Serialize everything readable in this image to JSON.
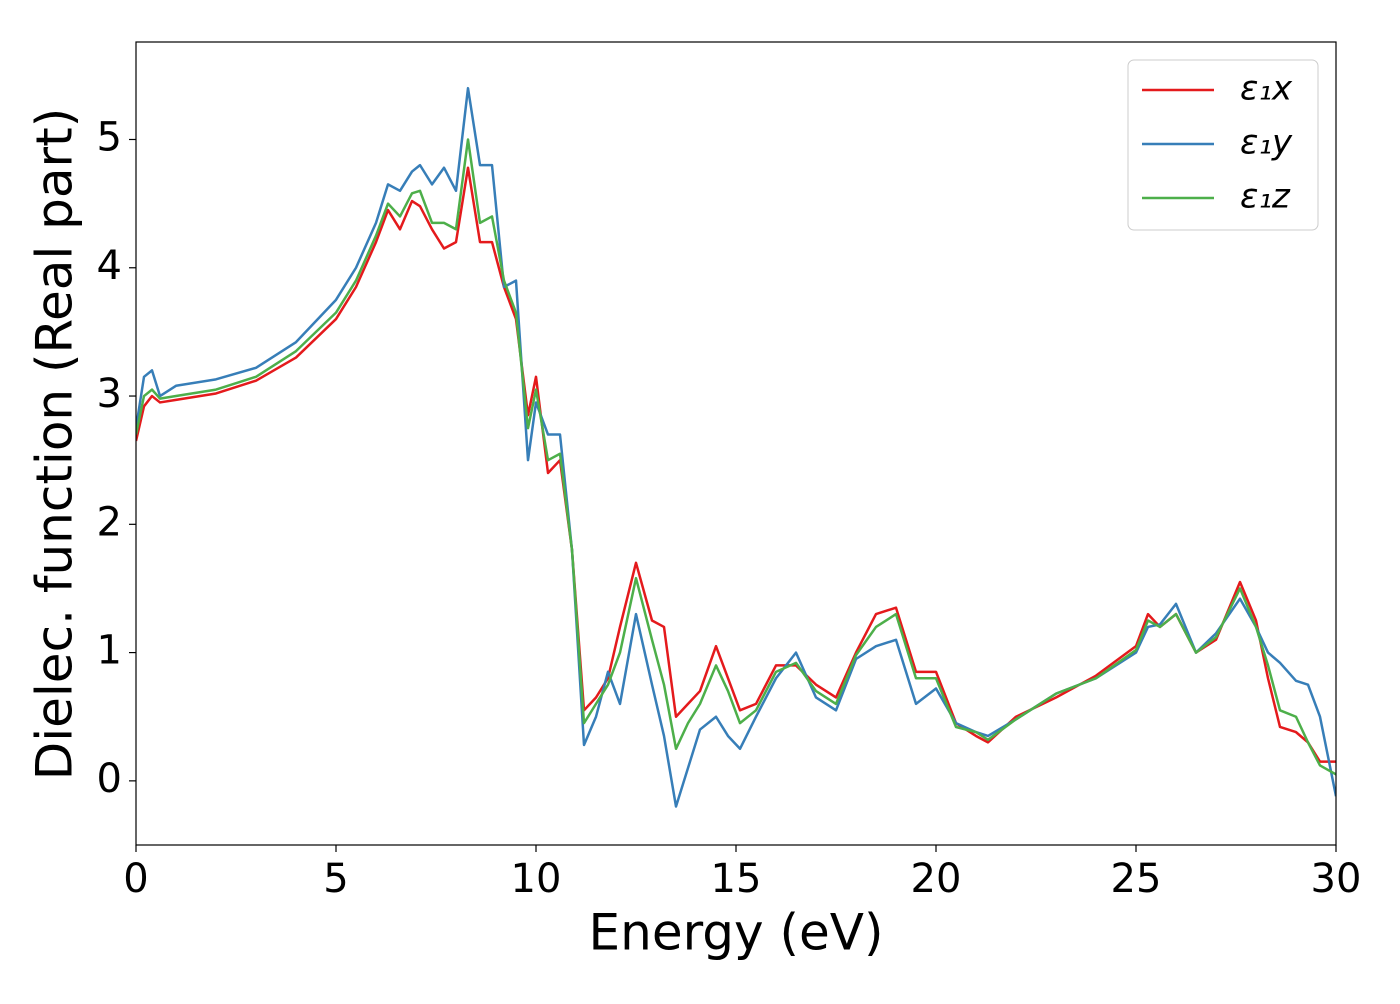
{
  "chart_data": {
    "type": "line",
    "xlabel": "Energy (eV)",
    "ylabel": "Dielec. function (Real part)",
    "x": [
      0,
      0.2,
      0.4,
      0.6,
      1,
      2,
      3,
      4,
      5,
      5.5,
      6,
      6.3,
      6.6,
      6.9,
      7.1,
      7.4,
      7.7,
      8.0,
      8.3,
      8.6,
      8.9,
      9.2,
      9.5,
      9.8,
      10.0,
      10.3,
      10.6,
      10.9,
      11.2,
      11.5,
      11.8,
      12.1,
      12.5,
      12.9,
      13.2,
      13.5,
      13.8,
      14.1,
      14.5,
      14.8,
      15.1,
      15.5,
      16.0,
      16.5,
      17.0,
      17.5,
      18.0,
      18.5,
      19.0,
      19.5,
      20.0,
      20.5,
      21.0,
      21.3,
      22.0,
      23.0,
      24.0,
      25.0,
      25.3,
      25.6,
      26.0,
      26.5,
      27.0,
      27.6,
      28.0,
      28.3,
      28.6,
      29.0,
      29.3,
      29.6,
      30.0
    ],
    "series": [
      {
        "name": "ε₁x",
        "color": "#e41a1c",
        "values": [
          2.65,
          2.92,
          3.0,
          2.95,
          2.97,
          3.02,
          3.12,
          3.3,
          3.6,
          3.85,
          4.2,
          4.45,
          4.3,
          4.52,
          4.48,
          4.3,
          4.15,
          4.2,
          4.78,
          4.2,
          4.2,
          3.85,
          3.6,
          2.85,
          3.15,
          2.4,
          2.5,
          1.8,
          0.55,
          0.65,
          0.8,
          1.2,
          1.7,
          1.25,
          1.2,
          0.5,
          0.6,
          0.7,
          1.05,
          0.8,
          0.55,
          0.6,
          0.9,
          0.9,
          0.75,
          0.65,
          1.0,
          1.3,
          1.35,
          0.85,
          0.85,
          0.45,
          0.35,
          0.3,
          0.5,
          0.65,
          0.82,
          1.05,
          1.3,
          1.2,
          1.3,
          1.0,
          1.1,
          1.55,
          1.25,
          0.8,
          0.42,
          0.38,
          0.3,
          0.15,
          0.15
        ]
      },
      {
        "name": "ε₁y",
        "color": "#377eb8",
        "values": [
          2.75,
          3.15,
          3.2,
          3.0,
          3.08,
          3.13,
          3.22,
          3.42,
          3.75,
          4.0,
          4.35,
          4.65,
          4.6,
          4.75,
          4.8,
          4.65,
          4.78,
          4.6,
          5.4,
          4.8,
          4.8,
          3.85,
          3.9,
          2.5,
          2.95,
          2.7,
          2.7,
          1.8,
          0.28,
          0.5,
          0.85,
          0.6,
          1.3,
          0.75,
          0.35,
          -0.2,
          0.1,
          0.4,
          0.5,
          0.35,
          0.25,
          0.5,
          0.8,
          1.0,
          0.65,
          0.55,
          0.95,
          1.05,
          1.1,
          0.6,
          0.72,
          0.45,
          0.38,
          0.35,
          0.48,
          0.68,
          0.8,
          1.0,
          1.2,
          1.22,
          1.38,
          1.0,
          1.15,
          1.42,
          1.2,
          1.0,
          0.92,
          0.78,
          0.75,
          0.5,
          -0.12
        ]
      },
      {
        "name": "ε₁z",
        "color": "#4daf4a",
        "values": [
          2.7,
          3.0,
          3.05,
          2.98,
          3.0,
          3.05,
          3.15,
          3.35,
          3.65,
          3.9,
          4.25,
          4.5,
          4.4,
          4.58,
          4.6,
          4.35,
          4.35,
          4.3,
          5.0,
          4.35,
          4.4,
          3.9,
          3.65,
          2.75,
          3.05,
          2.5,
          2.55,
          1.8,
          0.45,
          0.6,
          0.75,
          1.0,
          1.58,
          1.1,
          0.75,
          0.25,
          0.45,
          0.6,
          0.9,
          0.7,
          0.45,
          0.55,
          0.85,
          0.92,
          0.7,
          0.6,
          0.98,
          1.2,
          1.3,
          0.8,
          0.8,
          0.42,
          0.38,
          0.32,
          0.48,
          0.68,
          0.8,
          1.02,
          1.25,
          1.2,
          1.3,
          1.0,
          1.12,
          1.5,
          1.2,
          0.9,
          0.55,
          0.5,
          0.3,
          0.12,
          0.05
        ]
      }
    ],
    "xlim": [
      0,
      30
    ],
    "xticks": [
      0,
      5,
      10,
      15,
      20,
      25,
      30
    ],
    "ylim": [
      -0.5,
      5.76
    ],
    "yticks": [
      0,
      1,
      2,
      3,
      4,
      5
    ],
    "grid": false,
    "legend": "upper right"
  }
}
